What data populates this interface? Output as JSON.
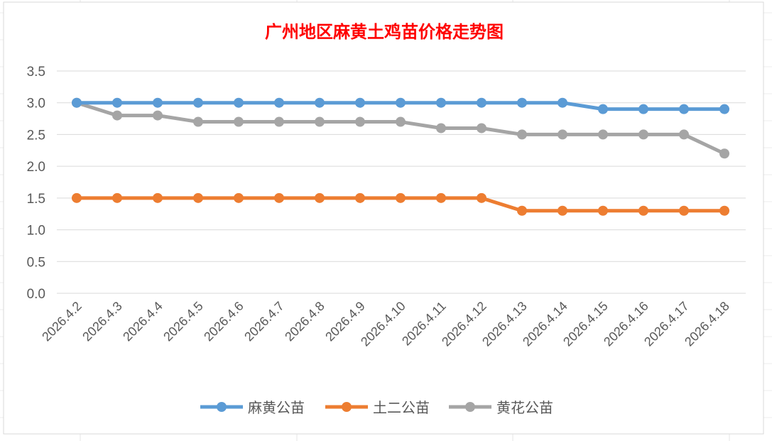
{
  "chart_data": {
    "type": "line",
    "title": "广州地区麻黄土鸡苗价格走势图",
    "xlabel": "",
    "ylabel": "",
    "categories": [
      "2026.4.2",
      "2026.4.3",
      "2026.4.4",
      "2026.4.5",
      "2026.4.6",
      "2026.4.7",
      "2026.4.8",
      "2026.4.9",
      "2026.4.10",
      "2026.4.11",
      "2026.4.12",
      "2026.4.13",
      "2026.4.14",
      "2026.4.15",
      "2026.4.16",
      "2026.4.17",
      "2026.4.18"
    ],
    "ylim": [
      0,
      3.5
    ],
    "yticks": [
      "0.0",
      "0.5",
      "1.0",
      "1.5",
      "2.0",
      "2.5",
      "3.0",
      "3.5"
    ],
    "grid": true,
    "legend_position": "bottom",
    "series": [
      {
        "name": "麻黄公苗",
        "color": "#5b9bd5",
        "values": [
          3.0,
          3.0,
          3.0,
          3.0,
          3.0,
          3.0,
          3.0,
          3.0,
          3.0,
          3.0,
          3.0,
          3.0,
          3.0,
          2.9,
          2.9,
          2.9,
          2.9
        ]
      },
      {
        "name": "土二公苗",
        "color": "#ed7d31",
        "values": [
          1.5,
          1.5,
          1.5,
          1.5,
          1.5,
          1.5,
          1.5,
          1.5,
          1.5,
          1.5,
          1.5,
          1.3,
          1.3,
          1.3,
          1.3,
          1.3,
          1.3
        ]
      },
      {
        "name": "黄花公苗",
        "color": "#a5a5a5",
        "values": [
          3.0,
          2.8,
          2.8,
          2.7,
          2.7,
          2.7,
          2.7,
          2.7,
          2.7,
          2.6,
          2.6,
          2.5,
          2.5,
          2.5,
          2.5,
          2.5,
          2.2
        ]
      }
    ]
  }
}
